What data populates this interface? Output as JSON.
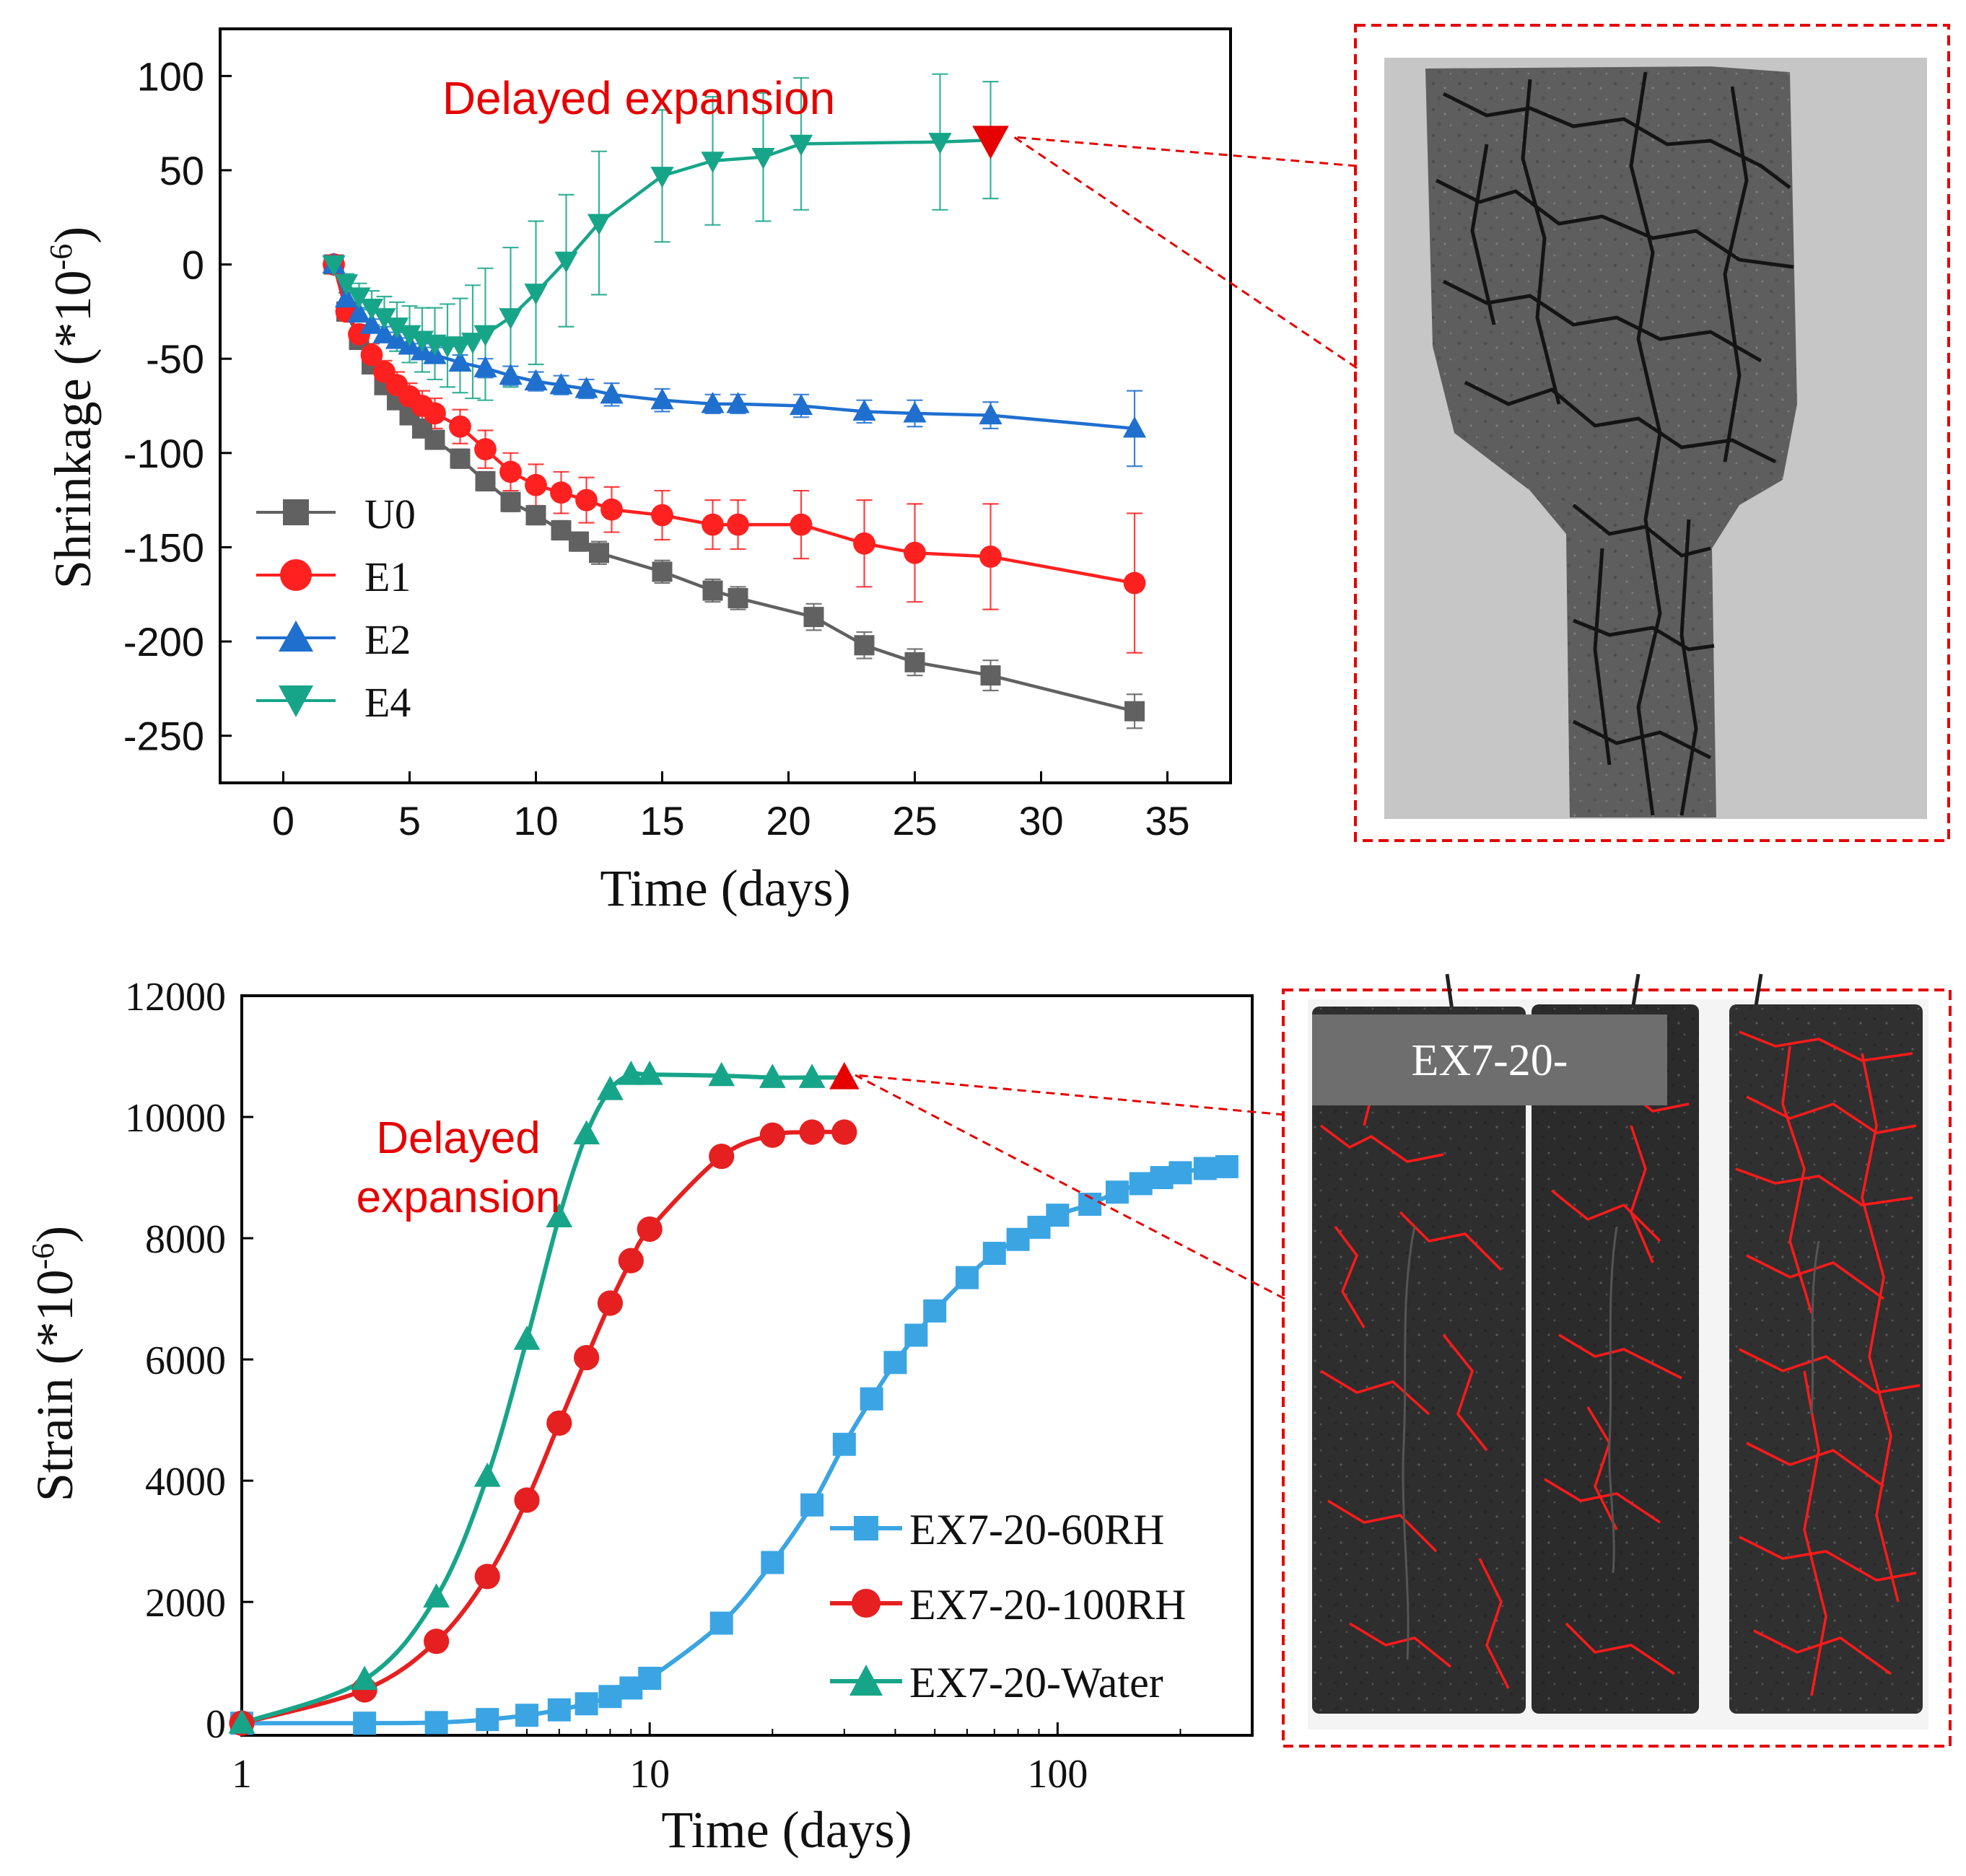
{
  "chart_data": [
    {
      "type": "line",
      "title": "",
      "xlabel": "Time (days)",
      "ylabel": "Shrinkage (*10",
      "ylabel_exponent": "-6",
      "ylabel_close": ")",
      "xlim": [
        -2.5,
        37.5
      ],
      "ylim": [
        -275,
        125
      ],
      "xticks": [
        0,
        5,
        10,
        15,
        20,
        25,
        30,
        35
      ],
      "xtick_labels": [
        "0",
        "5",
        "10",
        "15",
        "20",
        "25",
        "30",
        "35"
      ],
      "yticks": [
        100,
        50,
        0,
        -50,
        -100,
        -150,
        -200,
        -250
      ],
      "ytick_labels": [
        "100",
        "50",
        "0",
        "-50",
        "-100",
        "-150",
        "-200",
        "-250"
      ],
      "annotation": "Delayed  expansion",
      "legend_position": "lower-left",
      "series": [
        {
          "name": "U0",
          "color": "#616161",
          "marker": "square",
          "x": [
            2,
            2.5,
            3,
            3.5,
            4,
            4.5,
            5,
            5.5,
            6,
            7,
            8,
            9,
            10,
            11,
            11.7,
            12.5,
            15,
            17,
            18,
            21,
            23,
            25,
            28,
            33.7
          ],
          "y": [
            0,
            -25,
            -40,
            -53,
            -64,
            -72,
            -80,
            -87,
            -93,
            -103,
            -115,
            -126,
            -133,
            -141,
            -147,
            -153,
            -163,
            -173,
            -177,
            -187,
            -202,
            -211,
            -218,
            -237
          ],
          "err": [
            0,
            3,
            3,
            3,
            4,
            4,
            4,
            4,
            4,
            5,
            5,
            5,
            5,
            5,
            5,
            6,
            6,
            6,
            6,
            7,
            7,
            7,
            8,
            9
          ]
        },
        {
          "name": "E1",
          "color": "#ff2020",
          "marker": "circle",
          "x": [
            2,
            2.5,
            3,
            3.5,
            4,
            4.5,
            5,
            5.5,
            6,
            7,
            8,
            9,
            10,
            11,
            12,
            13,
            15,
            17,
            18,
            20.5,
            23,
            25,
            28,
            33.7
          ],
          "y": [
            0,
            -25,
            -37,
            -48,
            -57,
            -64,
            -70,
            -75,
            -79,
            -86,
            -98,
            -110,
            -117,
            -121,
            -125,
            -130,
            -133,
            -138,
            -138,
            -138,
            -148,
            -153,
            -155,
            -169
          ],
          "err": [
            0,
            4,
            5,
            6,
            6,
            7,
            7,
            8,
            8,
            9,
            10,
            10,
            11,
            11,
            12,
            12,
            13,
            13,
            13,
            18,
            23,
            26,
            28,
            37
          ]
        },
        {
          "name": "E2",
          "color": "#1f6fcf",
          "marker": "triangle-up",
          "x": [
            2,
            2.5,
            3,
            3.5,
            4,
            4.5,
            5,
            5.5,
            6,
            7,
            8,
            9,
            10,
            11,
            12,
            13,
            15,
            17,
            18,
            20.5,
            23,
            25,
            28,
            33.7
          ],
          "y": [
            0,
            -18,
            -26,
            -32,
            -37,
            -40,
            -43,
            -46,
            -48,
            -52,
            -55,
            -59,
            -62,
            -64,
            -66,
            -69,
            -72,
            -74,
            -74,
            -75,
            -78,
            -79,
            -80,
            -87
          ],
          "err": [
            0,
            3,
            3,
            3,
            4,
            4,
            4,
            4,
            4,
            4,
            5,
            5,
            5,
            5,
            5,
            6,
            6,
            5,
            5,
            6,
            6,
            7,
            7,
            20
          ]
        },
        {
          "name": "E4",
          "color": "#17a589",
          "marker": "triangle-down",
          "x": [
            2,
            2.5,
            3,
            3.5,
            4,
            4.5,
            5,
            5.5,
            6,
            6.5,
            7,
            7.5,
            8,
            9,
            10,
            11.2,
            12.5,
            15,
            17,
            19,
            20.5,
            26,
            28
          ],
          "y": [
            0,
            -10,
            -17,
            -23,
            -28,
            -33,
            -37,
            -40,
            -42,
            -43,
            -43,
            -41,
            -37,
            -28,
            -15,
            2,
            22,
            47,
            55,
            57,
            64,
            65,
            66
          ],
          "err": [
            0,
            5,
            7,
            9,
            11,
            13,
            15,
            17,
            19,
            22,
            25,
            30,
            35,
            37,
            38,
            35,
            38,
            35,
            34,
            34,
            35,
            36,
            31
          ]
        }
      ]
    },
    {
      "type": "line",
      "xscale": "log",
      "title": "",
      "xlabel": "Time (days)",
      "ylabel": "Strain (*10",
      "ylabel_exponent": "-6",
      "ylabel_close": ")",
      "xlim": [
        1,
        300
      ],
      "ylim": [
        -200,
        12000
      ],
      "xticks": [
        1,
        10,
        100
      ],
      "xtick_labels": [
        "1",
        "10",
        "100"
      ],
      "yticks": [
        12000,
        10000,
        8000,
        6000,
        4000,
        2000,
        0
      ],
      "ytick_labels": [
        "12000",
        "10000",
        "8000",
        "6000",
        "4000",
        "2000",
        "0"
      ],
      "annotation": [
        "Delayed",
        "expansion"
      ],
      "legend_position": "lower-right",
      "series": [
        {
          "name": "EX7-20-60RH",
          "color": "#3ba5e3",
          "marker": "square",
          "x": [
            1,
            2,
            3,
            4,
            5,
            6,
            7,
            8,
            9,
            10,
            15,
            20,
            25,
            30,
            35,
            40,
            45,
            50,
            60,
            70,
            80,
            90,
            100,
            120,
            140,
            160,
            180,
            200,
            230,
            260
          ],
          "y": [
            0,
            0,
            10,
            60,
            130,
            220,
            320,
            440,
            580,
            740,
            1650,
            2650,
            3600,
            4600,
            5350,
            5950,
            6400,
            6800,
            7350,
            7750,
            7980,
            8180,
            8380,
            8560,
            8760,
            8900,
            9000,
            9080,
            9150,
            9180
          ]
        },
        {
          "name": "EX7-20-100RH",
          "color": "#e62020",
          "marker": "circle",
          "x": [
            1,
            2,
            3,
            4,
            5,
            6,
            7,
            8,
            9,
            10,
            15,
            20,
            25,
            30
          ],
          "y": [
            0,
            550,
            1350,
            2420,
            3680,
            4950,
            6030,
            6930,
            7630,
            8150,
            9350,
            9700,
            9750,
            9750
          ]
        },
        {
          "name": "EX7-20-Water",
          "color": "#17a589",
          "marker": "triangle-up",
          "x": [
            1,
            2,
            3,
            4,
            5,
            6,
            7,
            8,
            9,
            10,
            15,
            20,
            25,
            30
          ],
          "y": [
            0,
            720,
            2080,
            4070,
            6330,
            8350,
            9720,
            10450,
            10700,
            10700,
            10680,
            10650,
            10650,
            10650
          ]
        }
      ]
    }
  ],
  "photos": {
    "top_caption": "",
    "bottom_label": "EX7-20-",
    "marker_color": "#e60000"
  }
}
